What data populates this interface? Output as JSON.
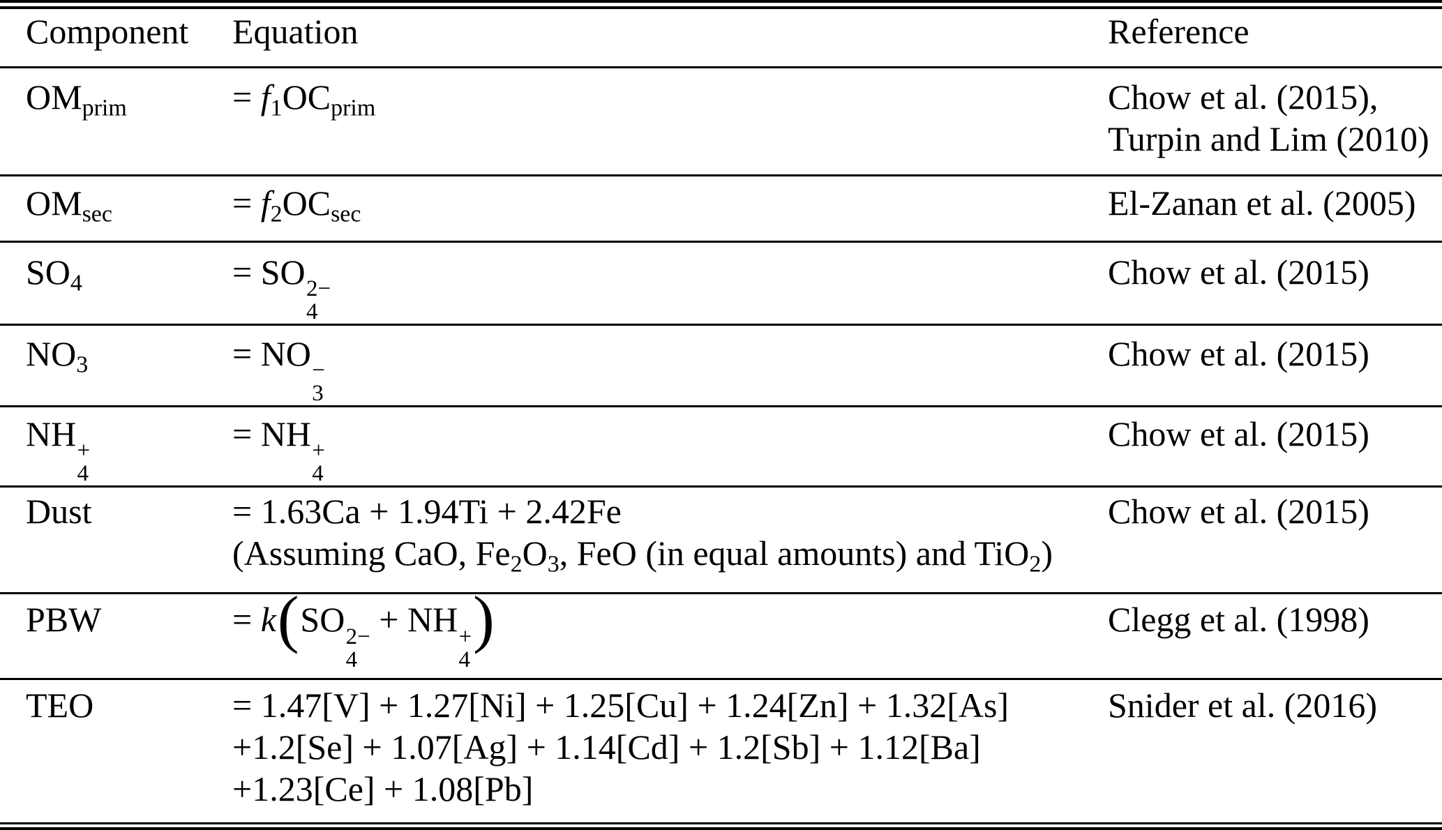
{
  "colors": {
    "text": "#000000",
    "background": "#ffffff",
    "rule": "#000000"
  },
  "table": {
    "columns": [
      "Component",
      "Equation",
      "Reference"
    ],
    "rows": [
      {
        "component": [
          {
            "t": "txt",
            "v": "OM"
          },
          {
            "t": "sub",
            "v": "prim"
          }
        ],
        "equation": [
          [
            {
              "t": "txt",
              "v": "= "
            },
            {
              "t": "it",
              "v": "f"
            },
            {
              "t": "sub",
              "v": "1"
            },
            {
              "t": "txt",
              "v": "OC"
            },
            {
              "t": "sub",
              "v": "prim"
            }
          ]
        ],
        "reference": [
          "Chow et al. (2015),",
          "Turpin and Lim (2010)"
        ]
      },
      {
        "component": [
          {
            "t": "txt",
            "v": "OM"
          },
          {
            "t": "sub",
            "v": "sec"
          }
        ],
        "equation": [
          [
            {
              "t": "txt",
              "v": "= "
            },
            {
              "t": "it",
              "v": "f"
            },
            {
              "t": "sub",
              "v": "2"
            },
            {
              "t": "txt",
              "v": "OC"
            },
            {
              "t": "sub",
              "v": "sec"
            }
          ]
        ],
        "reference": [
          "El-Zanan et al. (2005)"
        ]
      },
      {
        "component": [
          {
            "t": "txt",
            "v": "SO"
          },
          {
            "t": "sub",
            "v": "4"
          }
        ],
        "equation": [
          [
            {
              "t": "txt",
              "v": "= SO"
            },
            {
              "t": "ss",
              "sup": "2−",
              "sub": "4"
            }
          ]
        ],
        "reference": [
          "Chow et al. (2015)"
        ]
      },
      {
        "component": [
          {
            "t": "txt",
            "v": "NO"
          },
          {
            "t": "sub",
            "v": "3"
          }
        ],
        "equation": [
          [
            {
              "t": "txt",
              "v": "= NO"
            },
            {
              "t": "ss",
              "sup": "−",
              "sub": "3"
            }
          ]
        ],
        "reference": [
          "Chow et al. (2015)"
        ]
      },
      {
        "component": [
          {
            "t": "txt",
            "v": "NH"
          },
          {
            "t": "ss",
            "sup": "+",
            "sub": "4"
          }
        ],
        "equation": [
          [
            {
              "t": "txt",
              "v": "= NH"
            },
            {
              "t": "ss",
              "sup": "+",
              "sub": "4"
            }
          ]
        ],
        "reference": [
          "Chow et al. (2015)"
        ]
      },
      {
        "component": [
          {
            "t": "txt",
            "v": "Dust"
          }
        ],
        "equation": [
          [
            {
              "t": "txt",
              "v": "= 1.63Ca + 1.94Ti + 2.42Fe"
            }
          ],
          [
            {
              "t": "txt",
              "v": "(Assuming CaO, Fe"
            },
            {
              "t": "sub",
              "v": "2"
            },
            {
              "t": "txt",
              "v": "O"
            },
            {
              "t": "sub",
              "v": "3"
            },
            {
              "t": "txt",
              "v": ", FeO (in equal amounts) and TiO"
            },
            {
              "t": "sub",
              "v": "2"
            },
            {
              "t": "txt",
              "v": ")"
            }
          ]
        ],
        "reference": [
          "Chow et al. (2015)"
        ]
      },
      {
        "component": [
          {
            "t": "txt",
            "v": "PBW"
          }
        ],
        "equation": [
          [
            {
              "t": "txt",
              "v": "= "
            },
            {
              "t": "it",
              "v": "k"
            },
            {
              "t": "big",
              "v": "("
            },
            {
              "t": "txt",
              "v": "SO"
            },
            {
              "t": "ss",
              "sup": "2−",
              "sub": "4"
            },
            {
              "t": "txt",
              "v": " + NH"
            },
            {
              "t": "ss",
              "sup": "+",
              "sub": "4"
            },
            {
              "t": "big",
              "v": ")"
            }
          ]
        ],
        "reference": [
          "Clegg et al. (1998)"
        ]
      },
      {
        "component": [
          {
            "t": "txt",
            "v": "TEO"
          }
        ],
        "equation": [
          [
            {
              "t": "txt",
              "v": "= 1.47[V] + 1.27[Ni] + 1.25[Cu] + 1.24[Zn] + 1.32[As]"
            }
          ],
          [
            {
              "t": "txt",
              "v": "+1.2[Se] + 1.07[Ag] + 1.14[Cd] + 1.2[Sb] + 1.12[Ba]"
            }
          ],
          [
            {
              "t": "txt",
              "v": "+1.23[Ce] + 1.08[Pb]"
            }
          ]
        ],
        "reference": [
          "Snider et al. (2016)"
        ]
      }
    ]
  }
}
